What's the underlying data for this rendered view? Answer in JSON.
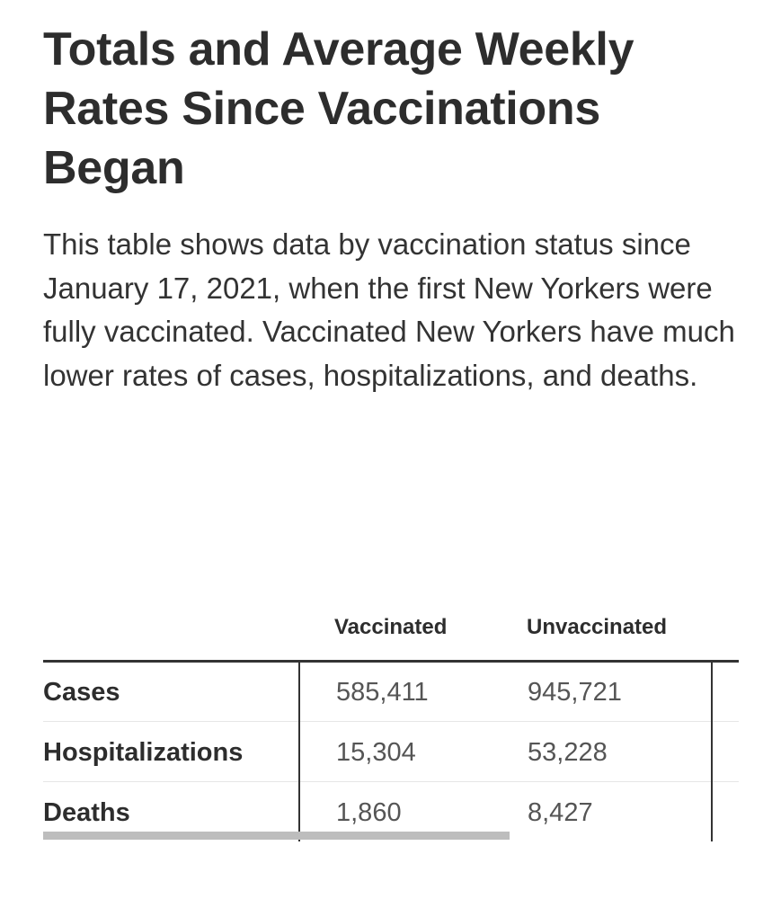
{
  "title": "Totals and Average Weekly Rates Since Vaccinations Began",
  "intro": "This table shows data by vaccination status since January 17, 2021, when the first New Yorkers were fully vaccinated. Vaccinated New Yorkers have much lower rates of cases, hospitalizations, and deaths.",
  "table": {
    "headers": {
      "label": "",
      "vaccinated": "Vaccinated",
      "unvaccinated": "Unvaccinated"
    },
    "rows": [
      {
        "label": "Cases",
        "vaccinated": "585,411",
        "unvaccinated": "945,721"
      },
      {
        "label": "Hospitalizations",
        "vaccinated": "15,304",
        "unvaccinated": "53,228"
      },
      {
        "label": "Deaths",
        "vaccinated": "1,860",
        "unvaccinated": "8,427"
      }
    ],
    "scrollbar_visible_fraction": 0.67
  },
  "chart_data": {
    "type": "table",
    "title": "Totals and Average Weekly Rates Since Vaccinations Began",
    "columns": [
      "",
      "Vaccinated",
      "Unvaccinated"
    ],
    "rows": [
      [
        "Cases",
        585411,
        945721
      ],
      [
        "Hospitalizations",
        15304,
        53228
      ],
      [
        "Deaths",
        1860,
        8427
      ]
    ]
  }
}
